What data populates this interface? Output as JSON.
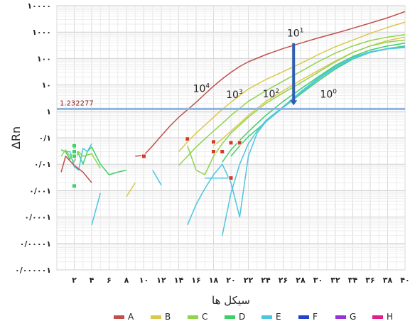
{
  "chart_data": {
    "type": "line",
    "ylabel": "ΔRn",
    "xlabel": "سیکل ها",
    "y_scale": "log",
    "ylim": [
      1e-06,
      10000
    ],
    "xlim": [
      0,
      40
    ],
    "grid": true,
    "legend_position": "bottom",
    "y_ticks": [
      {
        "value": 10000,
        "label": "۱۰۰۰۰"
      },
      {
        "value": 1000,
        "label": "۱۰۰۰"
      },
      {
        "value": 100,
        "label": "۱۰۰"
      },
      {
        "value": 10,
        "label": "۱۰"
      },
      {
        "value": 1,
        "label": "۱"
      },
      {
        "value": 0.1,
        "label": "۰/۱"
      },
      {
        "value": 0.01,
        "label": "۰/۰۱"
      },
      {
        "value": 0.001,
        "label": "۰/۰۰۱"
      },
      {
        "value": 0.0001,
        "label": "۰/۰۰۰۱"
      },
      {
        "value": 1e-05,
        "label": "۰/۰۰۰۰۱"
      },
      {
        "value": 1e-06,
        "label": "۰/۰۰۰۰۰۱"
      }
    ],
    "x_ticks": [
      {
        "value": 2,
        "label": "۲"
      },
      {
        "value": 4,
        "label": "۴"
      },
      {
        "value": 6,
        "label": "۶"
      },
      {
        "value": 8,
        "label": "۸"
      },
      {
        "value": 10,
        "label": "۱۰"
      },
      {
        "value": 12,
        "label": "۱۲"
      },
      {
        "value": 14,
        "label": "۱۴"
      },
      {
        "value": 16,
        "label": "۱۶"
      },
      {
        "value": 18,
        "label": "۱۸"
      },
      {
        "value": 20,
        "label": "۲۰"
      },
      {
        "value": 22,
        "label": "۲۲"
      },
      {
        "value": 24,
        "label": "۲۴"
      },
      {
        "value": 26,
        "label": "۲۶"
      },
      {
        "value": 28,
        "label": "۲۸"
      },
      {
        "value": 30,
        "label": "۳۰"
      },
      {
        "value": 32,
        "label": "۳۲"
      },
      {
        "value": 34,
        "label": "۳۴"
      },
      {
        "value": 36,
        "label": "۳۶"
      },
      {
        "value": 38,
        "label": "۳۸"
      },
      {
        "value": 40,
        "label": "۴۰"
      }
    ],
    "threshold": {
      "value": 1.232277,
      "label": "1.232277",
      "color": "#8fb4e0"
    },
    "annotations": [
      {
        "base": "10",
        "exp": "4",
        "x": 16.6,
        "y": 5.5
      },
      {
        "base": "10",
        "exp": "3",
        "x": 20.4,
        "y": 3.2
      },
      {
        "base": "10",
        "exp": "2",
        "x": 24.6,
        "y": 3.4
      },
      {
        "base": "10",
        "exp": "1",
        "x": 27.4,
        "y": 680
      },
      {
        "base": "10",
        "exp": "0",
        "x": 31.2,
        "y": 3.3
      }
    ],
    "arrow": {
      "x": 27.2,
      "y_from": 380,
      "y_to": 1.7,
      "color": "#2f5fb0"
    },
    "legend": [
      {
        "label": "A",
        "color": "#c0504d"
      },
      {
        "label": "B",
        "color": "#d9c84a"
      },
      {
        "label": "C",
        "color": "#8fd44a"
      },
      {
        "label": "D",
        "color": "#3fcf6a"
      },
      {
        "label": "E",
        "color": "#4cc6e0"
      },
      {
        "label": "F",
        "color": "#2244cc"
      },
      {
        "label": "G",
        "color": "#9b30d9"
      },
      {
        "label": "H",
        "color": "#e0208a"
      }
    ],
    "series": [
      {
        "color": "#c0504d",
        "points": [
          [
            9,
            0.02
          ],
          [
            10,
            0.022
          ],
          [
            11,
            0.05
          ],
          [
            12,
            0.12
          ],
          [
            13,
            0.28
          ],
          [
            14,
            0.6
          ],
          [
            15,
            1.15
          ],
          [
            16,
            2.2
          ],
          [
            17,
            4.5
          ],
          [
            18,
            9
          ],
          [
            19,
            17
          ],
          [
            20,
            30
          ],
          [
            21,
            50
          ],
          [
            22,
            75
          ],
          [
            24,
            140
          ],
          [
            26,
            240
          ],
          [
            28,
            380
          ],
          [
            30,
            600
          ],
          [
            32,
            900
          ],
          [
            34,
            1400
          ],
          [
            36,
            2200
          ],
          [
            38,
            3500
          ],
          [
            40,
            6000
          ]
        ]
      },
      {
        "color": "#d9c84a",
        "points": [
          [
            14,
            0.03
          ],
          [
            15,
            0.07
          ],
          [
            16,
            0.15
          ],
          [
            17,
            0.3
          ],
          [
            18,
            0.6
          ],
          [
            19,
            1.2
          ],
          [
            20,
            2.2
          ],
          [
            21,
            4
          ],
          [
            22,
            7
          ],
          [
            24,
            16
          ],
          [
            26,
            32
          ],
          [
            28,
            65
          ],
          [
            30,
            140
          ],
          [
            32,
            280
          ],
          [
            34,
            500
          ],
          [
            36,
            900
          ],
          [
            38,
            1500
          ],
          [
            40,
            2400
          ]
        ]
      },
      {
        "color": "#d9c84a",
        "points": [
          [
            18,
            0.05
          ],
          [
            19,
            0.09
          ],
          [
            20,
            0.18
          ],
          [
            21,
            0.35
          ],
          [
            22,
            0.7
          ],
          [
            23,
            1.3
          ],
          [
            24,
            2.4
          ],
          [
            26,
            6
          ],
          [
            28,
            15
          ],
          [
            30,
            35
          ],
          [
            32,
            80
          ],
          [
            34,
            170
          ],
          [
            36,
            300
          ],
          [
            38,
            480
          ],
          [
            40,
            650
          ]
        ]
      },
      {
        "color": "#8fd44a",
        "points": [
          [
            14,
            0.009
          ],
          [
            15,
            0.02
          ],
          [
            16,
            0.045
          ],
          [
            17,
            0.09
          ],
          [
            18,
            0.18
          ],
          [
            19,
            0.35
          ],
          [
            20,
            0.7
          ],
          [
            21,
            1.3
          ],
          [
            22,
            2.4
          ],
          [
            24,
            6
          ],
          [
            26,
            14
          ],
          [
            28,
            32
          ],
          [
            30,
            75
          ],
          [
            32,
            160
          ],
          [
            34,
            300
          ],
          [
            36,
            480
          ],
          [
            38,
            650
          ],
          [
            40,
            800
          ]
        ]
      },
      {
        "color": "#8fd44a",
        "points": [
          [
            15,
            0.05
          ],
          [
            16,
            0.006
          ],
          [
            17,
            0.004
          ],
          [
            18,
            0.02
          ],
          [
            19,
            0.06
          ],
          [
            20,
            0.15
          ],
          [
            21,
            0.3
          ],
          [
            22,
            0.6
          ],
          [
            24,
            2
          ],
          [
            26,
            5
          ],
          [
            28,
            12
          ],
          [
            30,
            30
          ],
          [
            32,
            75
          ],
          [
            34,
            170
          ],
          [
            36,
            300
          ],
          [
            38,
            420
          ],
          [
            40,
            500
          ]
        ]
      },
      {
        "color": "#3fcf6a",
        "points": [
          [
            19,
            0.012
          ],
          [
            20,
            0.035
          ],
          [
            21,
            0.08
          ],
          [
            22,
            0.17
          ],
          [
            23,
            0.35
          ],
          [
            24,
            0.7
          ],
          [
            26,
            2.4
          ],
          [
            28,
            7
          ],
          [
            30,
            20
          ],
          [
            32,
            55
          ],
          [
            34,
            120
          ],
          [
            36,
            210
          ],
          [
            38,
            300
          ],
          [
            40,
            380
          ]
        ]
      },
      {
        "color": "#3fcf6a",
        "points": [
          [
            20,
            0.02
          ],
          [
            21,
            0.05
          ],
          [
            22,
            0.11
          ],
          [
            24,
            0.4
          ],
          [
            26,
            1.4
          ],
          [
            28,
            4.5
          ],
          [
            30,
            14
          ],
          [
            32,
            40
          ],
          [
            34,
            95
          ],
          [
            36,
            170
          ],
          [
            38,
            240
          ],
          [
            40,
            300
          ]
        ]
      },
      {
        "color": "#4cc6e0",
        "points": [
          [
            15,
            5e-05
          ],
          [
            16,
            0.0003
          ],
          [
            17,
            0.0012
          ],
          [
            18,
            0.004
          ],
          [
            19,
            0.01
          ],
          [
            20,
            0.002
          ],
          [
            21,
            0.0001
          ],
          [
            22,
            0.02
          ],
          [
            23,
            0.15
          ],
          [
            24,
            0.4
          ],
          [
            26,
            1.4
          ],
          [
            28,
            5
          ],
          [
            30,
            16
          ],
          [
            32,
            45
          ],
          [
            34,
            100
          ],
          [
            36,
            170
          ],
          [
            38,
            230
          ],
          [
            40,
            260
          ]
        ]
      },
      {
        "color": "#4cc6e0",
        "points": [
          [
            19,
            2e-05
          ],
          [
            20,
            0.0008
          ],
          [
            21,
            0.01
          ],
          [
            22,
            0.06
          ],
          [
            23,
            0.18
          ],
          [
            24,
            0.45
          ],
          [
            26,
            1.5
          ],
          [
            28,
            5.5
          ],
          [
            30,
            18
          ],
          [
            32,
            50
          ],
          [
            34,
            110
          ],
          [
            36,
            180
          ],
          [
            38,
            240
          ],
          [
            40,
            280
          ]
        ]
      },
      {
        "color": "#4cc6e0",
        "points": [
          [
            17,
            0.003
          ],
          [
            18,
            0.003
          ],
          [
            19,
            0.003
          ],
          [
            20,
            0.003
          ]
        ]
      },
      {
        "color": "#3fcf6a",
        "points": [
          [
            0.5,
            0.035
          ],
          [
            1,
            0.03
          ],
          [
            1.5,
            0.015
          ],
          [
            2,
            0.04
          ],
          [
            2.5,
            0.025
          ],
          [
            3,
            0.01
          ],
          [
            3.5,
            0.03
          ],
          [
            4,
            0.045
          ],
          [
            5,
            0.01
          ],
          [
            6,
            0.004
          ],
          [
            7,
            0.005
          ],
          [
            8,
            0.006
          ]
        ]
      },
      {
        "color": "#8fd44a",
        "points": [
          [
            0.5,
            0.02
          ],
          [
            1,
            0.035
          ],
          [
            1.5,
            0.02
          ],
          [
            2,
            0.012
          ],
          [
            2.5,
            0.03
          ],
          [
            3,
            0.02
          ],
          [
            4,
            0.025
          ],
          [
            5,
            0.007
          ]
        ]
      },
      {
        "color": "#4cc6e0",
        "points": [
          [
            1,
            0.03
          ],
          [
            1.5,
            0.03
          ],
          [
            2,
            0.008
          ],
          [
            2.5,
            0.006
          ],
          [
            3,
            0.04
          ],
          [
            3.5,
            0.03
          ],
          [
            4,
            0.06
          ]
        ]
      },
      {
        "color": "#c0504d",
        "points": [
          [
            0.5,
            0.005
          ],
          [
            1,
            0.02
          ],
          [
            2,
            0.009
          ],
          [
            3,
            0.005
          ],
          [
            4,
            0.002
          ]
        ]
      },
      {
        "color": "#4cc6e0",
        "points": [
          [
            4,
            5e-05
          ],
          [
            5,
            0.0008
          ]
        ]
      },
      {
        "color": "#d9c84a",
        "points": [
          [
            8,
            0.0006
          ],
          [
            9,
            0.002
          ]
        ]
      },
      {
        "color": "#4cc6e0",
        "points": [
          [
            11,
            0.006
          ],
          [
            12,
            0.0016
          ]
        ]
      }
    ],
    "markers": [
      {
        "x": 10,
        "y": 0.02,
        "fill": "#d23b2c"
      },
      {
        "x": 15,
        "y": 0.09,
        "fill": "#d23b2c"
      },
      {
        "x": 18,
        "y": 0.07,
        "fill": "#d23b2c"
      },
      {
        "x": 18,
        "y": 0.03,
        "fill": "#d23b2c"
      },
      {
        "x": 19,
        "y": 0.03,
        "fill": "#d23b2c"
      },
      {
        "x": 20,
        "y": 0.065,
        "fill": "#d23b2c"
      },
      {
        "x": 20,
        "y": 0.003,
        "fill": "#d23b2c"
      },
      {
        "x": 21,
        "y": 0.065,
        "fill": "#d23b2c"
      },
      {
        "x": 2,
        "y": 0.05,
        "fill": "#3fcf6a"
      },
      {
        "x": 2,
        "y": 0.03,
        "fill": "#3fcf6a"
      },
      {
        "x": 2,
        "y": 0.02,
        "fill": "#3fcf6a"
      },
      {
        "x": 2,
        "y": 0.0015,
        "fill": "#3fcf6a"
      }
    ]
  }
}
